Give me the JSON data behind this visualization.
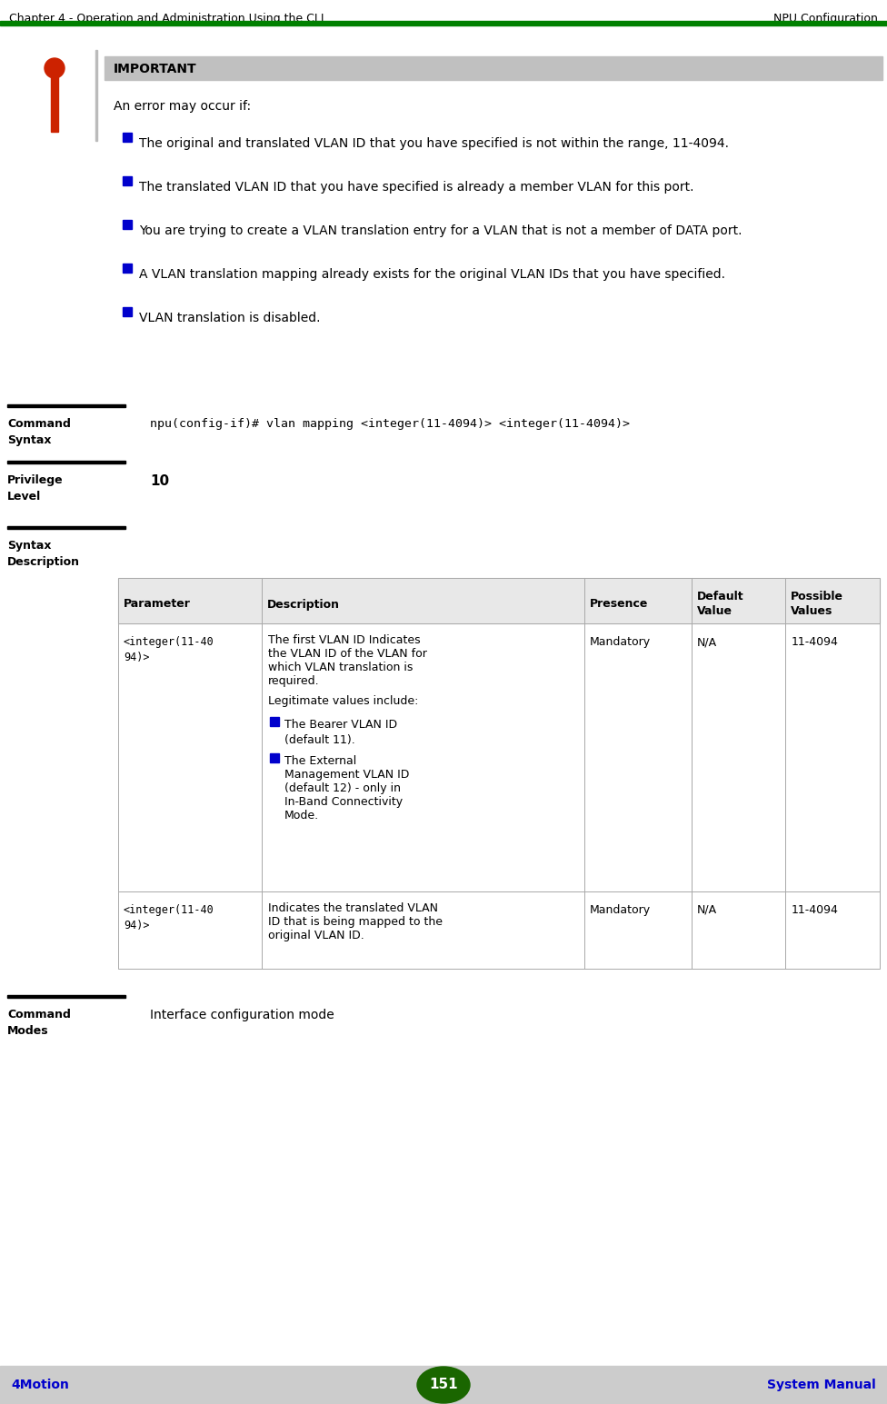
{
  "header_left": "Chapter 4 - Operation and Administration Using the CLI",
  "header_right": "NPU Configuration",
  "header_line_color": "#008000",
  "footer_left": "4Motion",
  "footer_center": "151",
  "footer_right": "System Manual",
  "footer_bg": "#cccccc",
  "footer_text_color": "#0000cc",
  "footer_circle_color": "#1a6600",
  "important_label": "IMPORTANT",
  "important_bg": "#c0c0c0",
  "intro_text": "An error may occur if:",
  "bullet_color": "#0000cc",
  "bullets": [
    "The original and translated VLAN ID that you have specified is not within the range, 11-4094.",
    "The translated VLAN ID that you have specified is already a member VLAN for this port.",
    "You are trying to create a VLAN translation entry for a VLAN that is not a member of DATA port.",
    "A VLAN translation mapping already exists for the original VLAN IDs that you have specified.",
    "VLAN translation is disabled."
  ],
  "section1_label": "Command\nSyntax",
  "command_syntax": "npu(config-if)# vlan mapping <integer(11-4094)> <integer(11-4094)>",
  "section2_label": "Privilege\nLevel",
  "privilege_value": "10",
  "section3_label": "Syntax\nDescription",
  "table_headers": [
    "Parameter",
    "Description",
    "Presence",
    "Default\nValue",
    "Possible\nValues"
  ],
  "table_header_bg": "#e8e8e8",
  "section4_label": "Command\nModes",
  "command_modes_value": "Interface configuration mode",
  "bg_color": "#ffffff",
  "sep_color": "#000000",
  "table_border_color": "#aaaaaa"
}
